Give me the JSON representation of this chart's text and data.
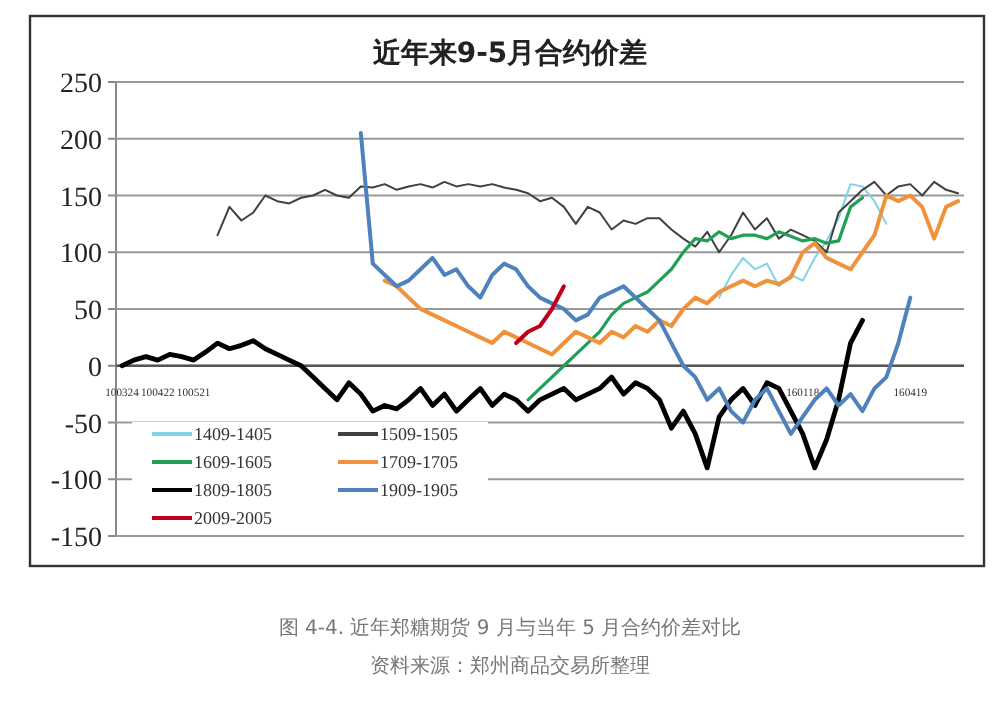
{
  "chart_data": {
    "type": "line",
    "title": "近年来9-5月合约价差",
    "categories": [
      "100324",
      null,
      null,
      "100422",
      null,
      null,
      "100521",
      null,
      null,
      null,
      null,
      null,
      null,
      null,
      null,
      null,
      null,
      null,
      null,
      null,
      null,
      null,
      null,
      null,
      null,
      null,
      null,
      null,
      null,
      null,
      null,
      null,
      null,
      null,
      null,
      null,
      null,
      null,
      null,
      null,
      null,
      null,
      null,
      null,
      null,
      null,
      null,
      null,
      null,
      null,
      null,
      null,
      null,
      null,
      null,
      null,
      null,
      "160118",
      null,
      null,
      null,
      null,
      null,
      null,
      null,
      null,
      "160419",
      null,
      null,
      null,
      null
    ],
    "series": [
      {
        "name": "1409-1405",
        "color": "#7fd3e6",
        "values": [
          null,
          null,
          null,
          null,
          null,
          null,
          null,
          null,
          null,
          null,
          null,
          null,
          null,
          null,
          null,
          null,
          null,
          null,
          null,
          null,
          null,
          null,
          null,
          null,
          null,
          null,
          null,
          null,
          null,
          null,
          null,
          null,
          null,
          null,
          null,
          null,
          null,
          null,
          null,
          null,
          null,
          null,
          null,
          null,
          null,
          null,
          null,
          null,
          null,
          null,
          60,
          80,
          95,
          85,
          90,
          70,
          80,
          75,
          95,
          110,
          130,
          160,
          158,
          145,
          125,
          null,
          null,
          null,
          null,
          null,
          null
        ]
      },
      {
        "name": "1509-1505",
        "color": "#404040",
        "values": [
          null,
          null,
          null,
          null,
          null,
          null,
          null,
          null,
          115,
          140,
          128,
          135,
          150,
          145,
          143,
          148,
          150,
          155,
          150,
          148,
          158,
          157,
          160,
          155,
          158,
          160,
          157,
          162,
          158,
          160,
          158,
          160,
          157,
          155,
          152,
          145,
          148,
          140,
          125,
          140,
          135,
          120,
          128,
          125,
          130,
          130,
          120,
          112,
          105,
          118,
          100,
          115,
          135,
          120,
          130,
          112,
          120,
          115,
          110,
          100,
          135,
          145,
          155,
          162,
          150,
          158,
          160,
          150,
          162,
          155,
          152
        ]
      },
      {
        "name": "1609-1605",
        "color": "#1fa055",
        "values": [
          null,
          null,
          null,
          null,
          null,
          null,
          null,
          null,
          null,
          null,
          null,
          null,
          null,
          null,
          null,
          null,
          null,
          null,
          null,
          null,
          null,
          null,
          null,
          null,
          null,
          null,
          null,
          null,
          null,
          null,
          null,
          null,
          null,
          null,
          -30,
          -20,
          -10,
          0,
          10,
          20,
          30,
          45,
          55,
          60,
          65,
          75,
          85,
          100,
          112,
          110,
          118,
          112,
          115,
          115,
          112,
          118,
          114,
          110,
          112,
          108,
          110,
          140,
          148,
          null,
          null,
          null,
          null,
          null,
          null,
          null,
          null
        ]
      },
      {
        "name": "1709-1705",
        "color": "#f0923c",
        "values": [
          null,
          null,
          null,
          null,
          null,
          null,
          null,
          null,
          null,
          null,
          null,
          null,
          null,
          null,
          null,
          null,
          null,
          null,
          null,
          null,
          null,
          null,
          75,
          70,
          60,
          50,
          45,
          40,
          35,
          30,
          25,
          20,
          30,
          25,
          20,
          15,
          10,
          20,
          30,
          25,
          20,
          30,
          25,
          35,
          30,
          40,
          35,
          50,
          60,
          55,
          65,
          70,
          75,
          70,
          75,
          72,
          78,
          100,
          108,
          95,
          90,
          85,
          100,
          115,
          150,
          145,
          150,
          140,
          112,
          140,
          145
        ]
      },
      {
        "name": "1809-1805",
        "color": "#000000",
        "values": [
          0,
          5,
          8,
          5,
          10,
          8,
          5,
          12,
          20,
          15,
          18,
          22,
          15,
          10,
          5,
          0,
          -10,
          -20,
          -30,
          -15,
          -25,
          -40,
          -35,
          -38,
          -30,
          -20,
          -35,
          -25,
          -40,
          -30,
          -20,
          -35,
          -25,
          -30,
          -40,
          -30,
          -25,
          -20,
          -30,
          -25,
          -20,
          -10,
          -25,
          -15,
          -20,
          -30,
          -55,
          -40,
          -60,
          -90,
          -45,
          -30,
          -20,
          -35,
          -15,
          -20,
          -40,
          -60,
          -90,
          -65,
          -30,
          20,
          40,
          null,
          null,
          null,
          null,
          null,
          null,
          null,
          null
        ]
      },
      {
        "name": "1909-1905",
        "color": "#4f81bd",
        "values": [
          null,
          null,
          null,
          null,
          null,
          null,
          null,
          null,
          null,
          null,
          null,
          null,
          null,
          null,
          null,
          null,
          null,
          null,
          null,
          null,
          205,
          90,
          80,
          70,
          75,
          85,
          95,
          80,
          85,
          70,
          60,
          80,
          90,
          85,
          70,
          60,
          55,
          50,
          40,
          45,
          60,
          65,
          70,
          60,
          50,
          40,
          20,
          0,
          -10,
          -30,
          -20,
          -40,
          -50,
          -30,
          -20,
          -40,
          -60,
          -45,
          -30,
          -20,
          -35,
          -25,
          -40,
          -20,
          -10,
          20,
          60,
          null,
          null,
          null,
          null
        ]
      },
      {
        "name": "2009-2005",
        "color": "#c0001a",
        "values": [
          null,
          null,
          null,
          null,
          null,
          null,
          null,
          null,
          null,
          null,
          null,
          null,
          null,
          null,
          null,
          null,
          null,
          null,
          null,
          null,
          null,
          null,
          null,
          null,
          null,
          null,
          null,
          null,
          null,
          null,
          null,
          null,
          null,
          20,
          30,
          35,
          50,
          70,
          null,
          null,
          null,
          null,
          null,
          null,
          null,
          null,
          null,
          null,
          null,
          null,
          null,
          null,
          null,
          null,
          null,
          null,
          null,
          null,
          null,
          null,
          null,
          null,
          null,
          null,
          null,
          null,
          null,
          null,
          null,
          null,
          null
        ]
      }
    ],
    "ylim": [
      -150,
      250
    ],
    "yticks": [
      -150,
      -100,
      -50,
      0,
      50,
      100,
      150,
      200,
      250
    ],
    "grid": "y",
    "legend": "bottom left",
    "annotations": [
      "图 4-4. 近年郑糖期货 9 月与当年 5 月合约价差对比",
      "资料来源：郑州商品交易所整理"
    ]
  }
}
